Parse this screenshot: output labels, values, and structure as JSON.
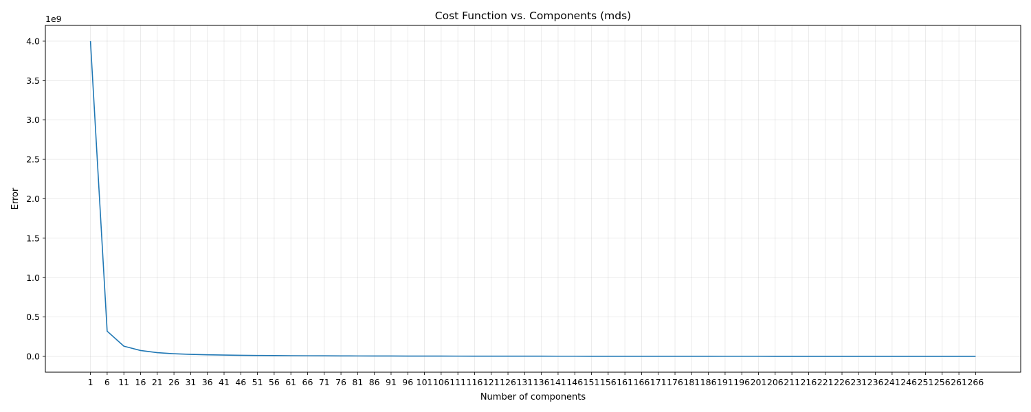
{
  "chart_data": {
    "type": "line",
    "title": "Cost Function vs. Components (mds)",
    "xlabel": "Number of components",
    "ylabel": "Error",
    "y_offset_label": "1e9",
    "y_scale": 1000000000,
    "grid": true,
    "xlim": [
      -12.5,
      279.5
    ],
    "ylim": [
      -200000000,
      4200000000
    ],
    "yticks": [
      0,
      500000000,
      1000000000,
      1500000000,
      2000000000,
      2500000000,
      3000000000,
      3500000000,
      4000000000
    ],
    "ytick_labels": [
      "0.0",
      "0.5",
      "1.0",
      "1.5",
      "2.0",
      "2.5",
      "3.0",
      "3.5",
      "4.0"
    ],
    "xticks": [
      1,
      6,
      11,
      16,
      21,
      26,
      31,
      36,
      41,
      46,
      51,
      56,
      61,
      66,
      71,
      76,
      81,
      86,
      91,
      96,
      101,
      106,
      111,
      116,
      121,
      126,
      131,
      136,
      141,
      146,
      151,
      156,
      161,
      166,
      171,
      176,
      181,
      186,
      191,
      196,
      201,
      206,
      211,
      216,
      221,
      226,
      231,
      236,
      241,
      246,
      251,
      256,
      261,
      266
    ],
    "xtick_labels": [
      "1",
      "6",
      "11",
      "16",
      "21",
      "26",
      "31",
      "36",
      "41",
      "46",
      "51",
      "56",
      "61",
      "66",
      "71",
      "76",
      "81",
      "86",
      "91",
      "96",
      "101",
      "106",
      "111",
      "116",
      "121",
      "126",
      "131",
      "136",
      "141",
      "146",
      "151",
      "156",
      "161",
      "166",
      "171",
      "176",
      "181",
      "186",
      "191",
      "196",
      "201",
      "206",
      "211",
      "216",
      "221",
      "226",
      "231",
      "236",
      "241",
      "246",
      "251",
      "256",
      "261",
      "266"
    ],
    "series": [
      {
        "color": "#1f77b4",
        "x": [
          1,
          6,
          11,
          16,
          21,
          26,
          31,
          36,
          41,
          46,
          51,
          56,
          61,
          66,
          71,
          76,
          81,
          86,
          91,
          96,
          101,
          106,
          111,
          116,
          121,
          126,
          131,
          136,
          141,
          146,
          151,
          156,
          161,
          166,
          171,
          176,
          181,
          186,
          191,
          196,
          201,
          206,
          211,
          216,
          221,
          226,
          231,
          236,
          241,
          246,
          251,
          256,
          261,
          266
        ],
        "y": [
          4000000000,
          320000000,
          130000000,
          75000000,
          48000000,
          34000000,
          26000000,
          21000000,
          17000000,
          14000000,
          12000000,
          10500000,
          9000000,
          8000000,
          7200000,
          6500000,
          5900000,
          5400000,
          5000000,
          4600000,
          4300000,
          4000000,
          3700000,
          3500000,
          3300000,
          3100000,
          2900000,
          2750000,
          2600000,
          2450000,
          2300000,
          2200000,
          2100000,
          2000000,
          1900000,
          1800000,
          1720000,
          1640000,
          1560000,
          1490000,
          1420000,
          1360000,
          1300000,
          1240000,
          1190000,
          1140000,
          1090000,
          1050000,
          1010000,
          970000,
          930000,
          900000,
          870000,
          840000
        ]
      }
    ]
  }
}
